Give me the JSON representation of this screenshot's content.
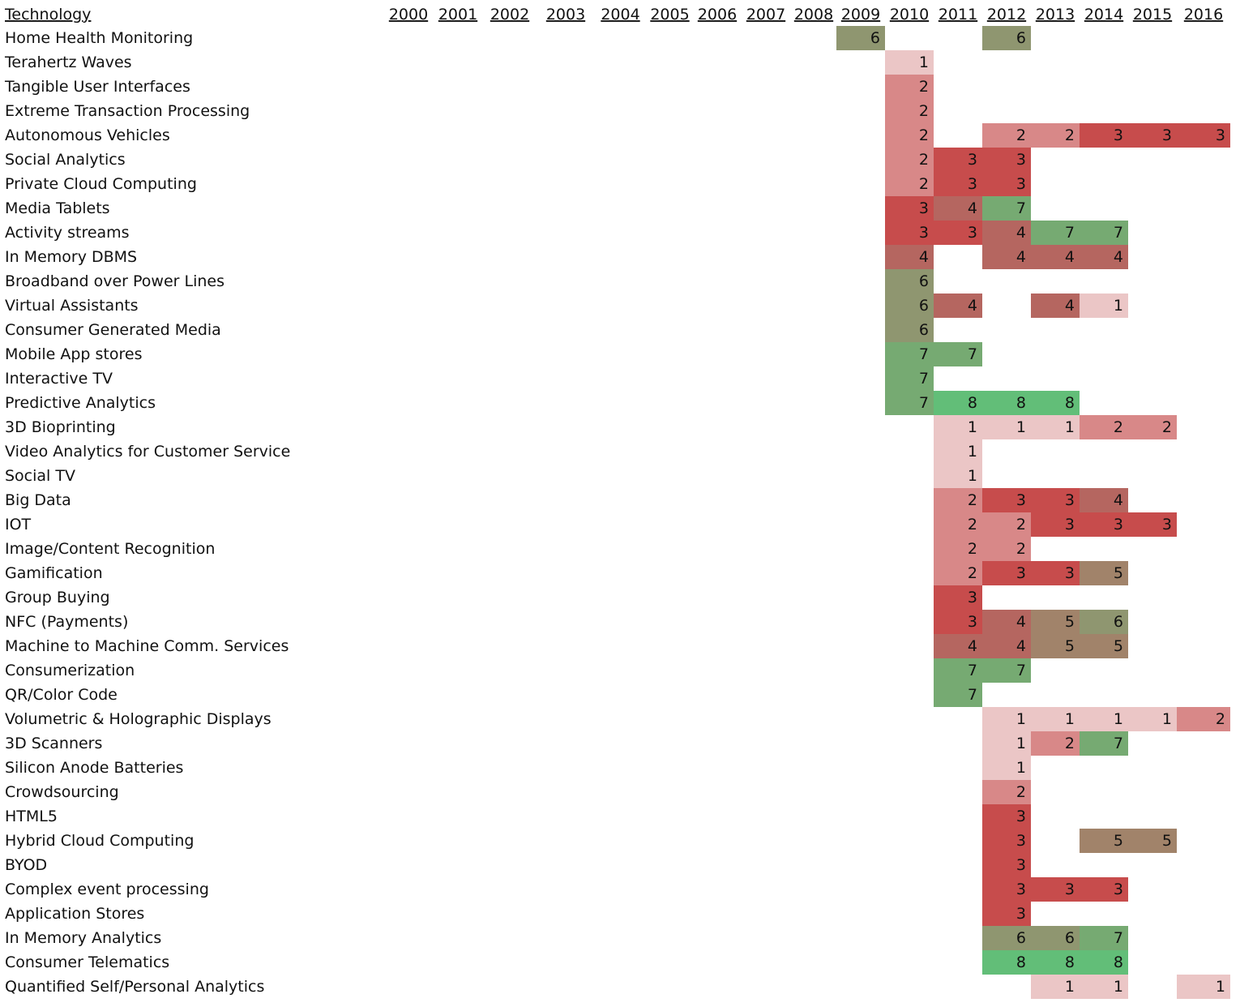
{
  "chart_data": {
    "type": "heatmap",
    "corner_label": "Technology",
    "years": [
      "2000",
      "2001",
      "2002",
      "2003",
      "2004",
      "2005",
      "2006",
      "2007",
      "2008",
      "2009",
      "2010",
      "2011",
      "2012",
      "2013",
      "2014",
      "2015",
      "2016"
    ],
    "color_scale": {
      "1": "#EBC6C6",
      "2": "#D88888",
      "3": "#C74C4C",
      "4": "#B56660",
      "5": "#A1836A",
      "6": "#8F9670",
      "7": "#76AA72",
      "8": "#62BE78"
    },
    "rows": [
      {
        "label": "Home Health Monitoring",
        "values": {
          "2009": 6,
          "2012": 6
        }
      },
      {
        "label": "Terahertz Waves",
        "values": {
          "2010": 1
        }
      },
      {
        "label": "Tangible User Interfaces",
        "values": {
          "2010": 2
        }
      },
      {
        "label": "Extreme Transaction Processing",
        "values": {
          "2010": 2
        }
      },
      {
        "label": "Autonomous Vehicles",
        "values": {
          "2010": 2,
          "2012": 2,
          "2013": 2,
          "2014": 3,
          "2015": 3,
          "2016": 3
        }
      },
      {
        "label": "Social Analytics",
        "values": {
          "2010": 2,
          "2011": 3,
          "2012": 3
        }
      },
      {
        "label": "Private Cloud Computing",
        "values": {
          "2010": 2,
          "2011": 3,
          "2012": 3
        }
      },
      {
        "label": "Media Tablets",
        "values": {
          "2010": 3,
          "2011": 4,
          "2012": 7
        }
      },
      {
        "label": "Activity streams",
        "values": {
          "2010": 3,
          "2011": 3,
          "2012": 4,
          "2013": 7,
          "2014": 7
        }
      },
      {
        "label": "In Memory DBMS",
        "values": {
          "2010": 4,
          "2012": 4,
          "2013": 4,
          "2014": 4
        }
      },
      {
        "label": "Broadband over Power Lines",
        "values": {
          "2010": 6
        }
      },
      {
        "label": "Virtual Assistants",
        "values": {
          "2010": 6,
          "2011": 4,
          "2013": 4,
          "2014": 1
        }
      },
      {
        "label": "Consumer Generated Media",
        "values": {
          "2010": 6
        }
      },
      {
        "label": "Mobile App stores",
        "values": {
          "2010": 7,
          "2011": 7
        }
      },
      {
        "label": "Interactive TV",
        "values": {
          "2010": 7
        }
      },
      {
        "label": "Predictive Analytics",
        "values": {
          "2010": 7,
          "2011": 8,
          "2012": 8,
          "2013": 8
        }
      },
      {
        "label": "3D Bioprinting",
        "values": {
          "2011": 1,
          "2012": 1,
          "2013": 1,
          "2014": 2,
          "2015": 2
        }
      },
      {
        "label": "Video Analytics for Customer Service",
        "values": {
          "2011": 1
        }
      },
      {
        "label": "Social TV",
        "values": {
          "2011": 1
        }
      },
      {
        "label": "Big Data",
        "values": {
          "2011": 2,
          "2012": 3,
          "2013": 3,
          "2014": 4
        }
      },
      {
        "label": "IOT",
        "values": {
          "2011": 2,
          "2012": 2,
          "2013": 3,
          "2014": 3,
          "2015": 3
        }
      },
      {
        "label": "Image/Content Recognition",
        "values": {
          "2011": 2,
          "2012": 2
        }
      },
      {
        "label": "Gamification",
        "values": {
          "2011": 2,
          "2012": 3,
          "2013": 3,
          "2014": 5
        }
      },
      {
        "label": "Group Buying",
        "values": {
          "2011": 3
        }
      },
      {
        "label": "NFC (Payments)",
        "values": {
          "2011": 3,
          "2012": 4,
          "2013": 5,
          "2014": 6
        }
      },
      {
        "label": "Machine to Machine Comm. Services",
        "values": {
          "2011": 4,
          "2012": 4,
          "2013": 5,
          "2014": 5
        }
      },
      {
        "label": "Consumerization",
        "values": {
          "2011": 7,
          "2012": 7
        }
      },
      {
        "label": "QR/Color Code",
        "values": {
          "2011": 7
        }
      },
      {
        "label": "Volumetric & Holographic Displays",
        "values": {
          "2012": 1,
          "2013": 1,
          "2014": 1,
          "2015": 1,
          "2016": 2
        }
      },
      {
        "label": "3D Scanners",
        "values": {
          "2012": 1,
          "2013": 2,
          "2014": 7
        }
      },
      {
        "label": "Silicon Anode Batteries",
        "values": {
          "2012": 1
        }
      },
      {
        "label": "Crowdsourcing",
        "values": {
          "2012": 2
        }
      },
      {
        "label": "HTML5",
        "values": {
          "2012": 3
        }
      },
      {
        "label": "Hybrid Cloud Computing",
        "values": {
          "2012": 3,
          "2014": 5,
          "2015": 5
        }
      },
      {
        "label": "BYOD",
        "values": {
          "2012": 3
        }
      },
      {
        "label": "Complex event processing",
        "values": {
          "2012": 3,
          "2013": 3,
          "2014": 3
        }
      },
      {
        "label": "Application Stores",
        "values": {
          "2012": 3
        }
      },
      {
        "label": "In Memory Analytics",
        "values": {
          "2012": 6,
          "2013": 6,
          "2014": 7
        }
      },
      {
        "label": "Consumer Telematics",
        "values": {
          "2012": 8,
          "2013": 8,
          "2014": 8
        }
      },
      {
        "label": "Quantified Self/Personal Analytics",
        "values": {
          "2013": 1,
          "2014": 1,
          "2016": 1
        }
      }
    ]
  }
}
